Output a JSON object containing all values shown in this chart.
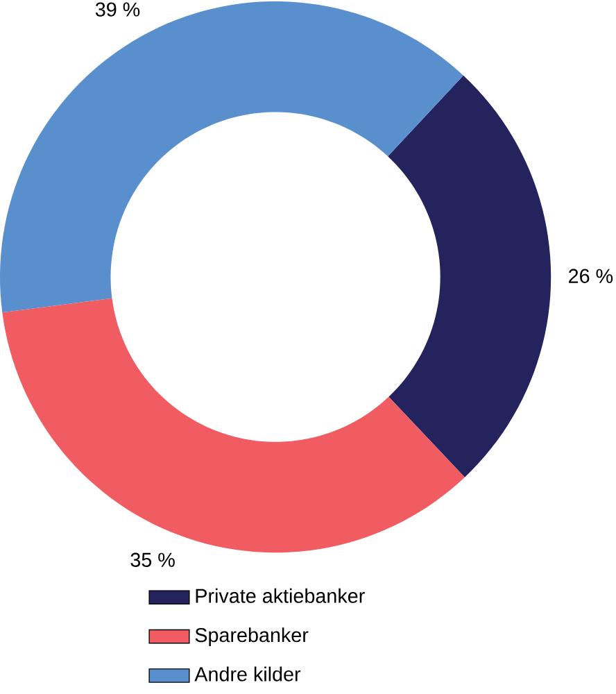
{
  "chart_data": {
    "type": "donut",
    "categories": [
      "Private aktiebanker",
      "Sparebanker",
      "Andre kilder"
    ],
    "values": [
      26,
      35,
      39
    ],
    "value_labels": [
      "26 %",
      "35 %",
      "39 %"
    ],
    "colors": [
      "#24235e",
      "#f05c62",
      "#5a8fce"
    ],
    "legend": "bottom"
  }
}
